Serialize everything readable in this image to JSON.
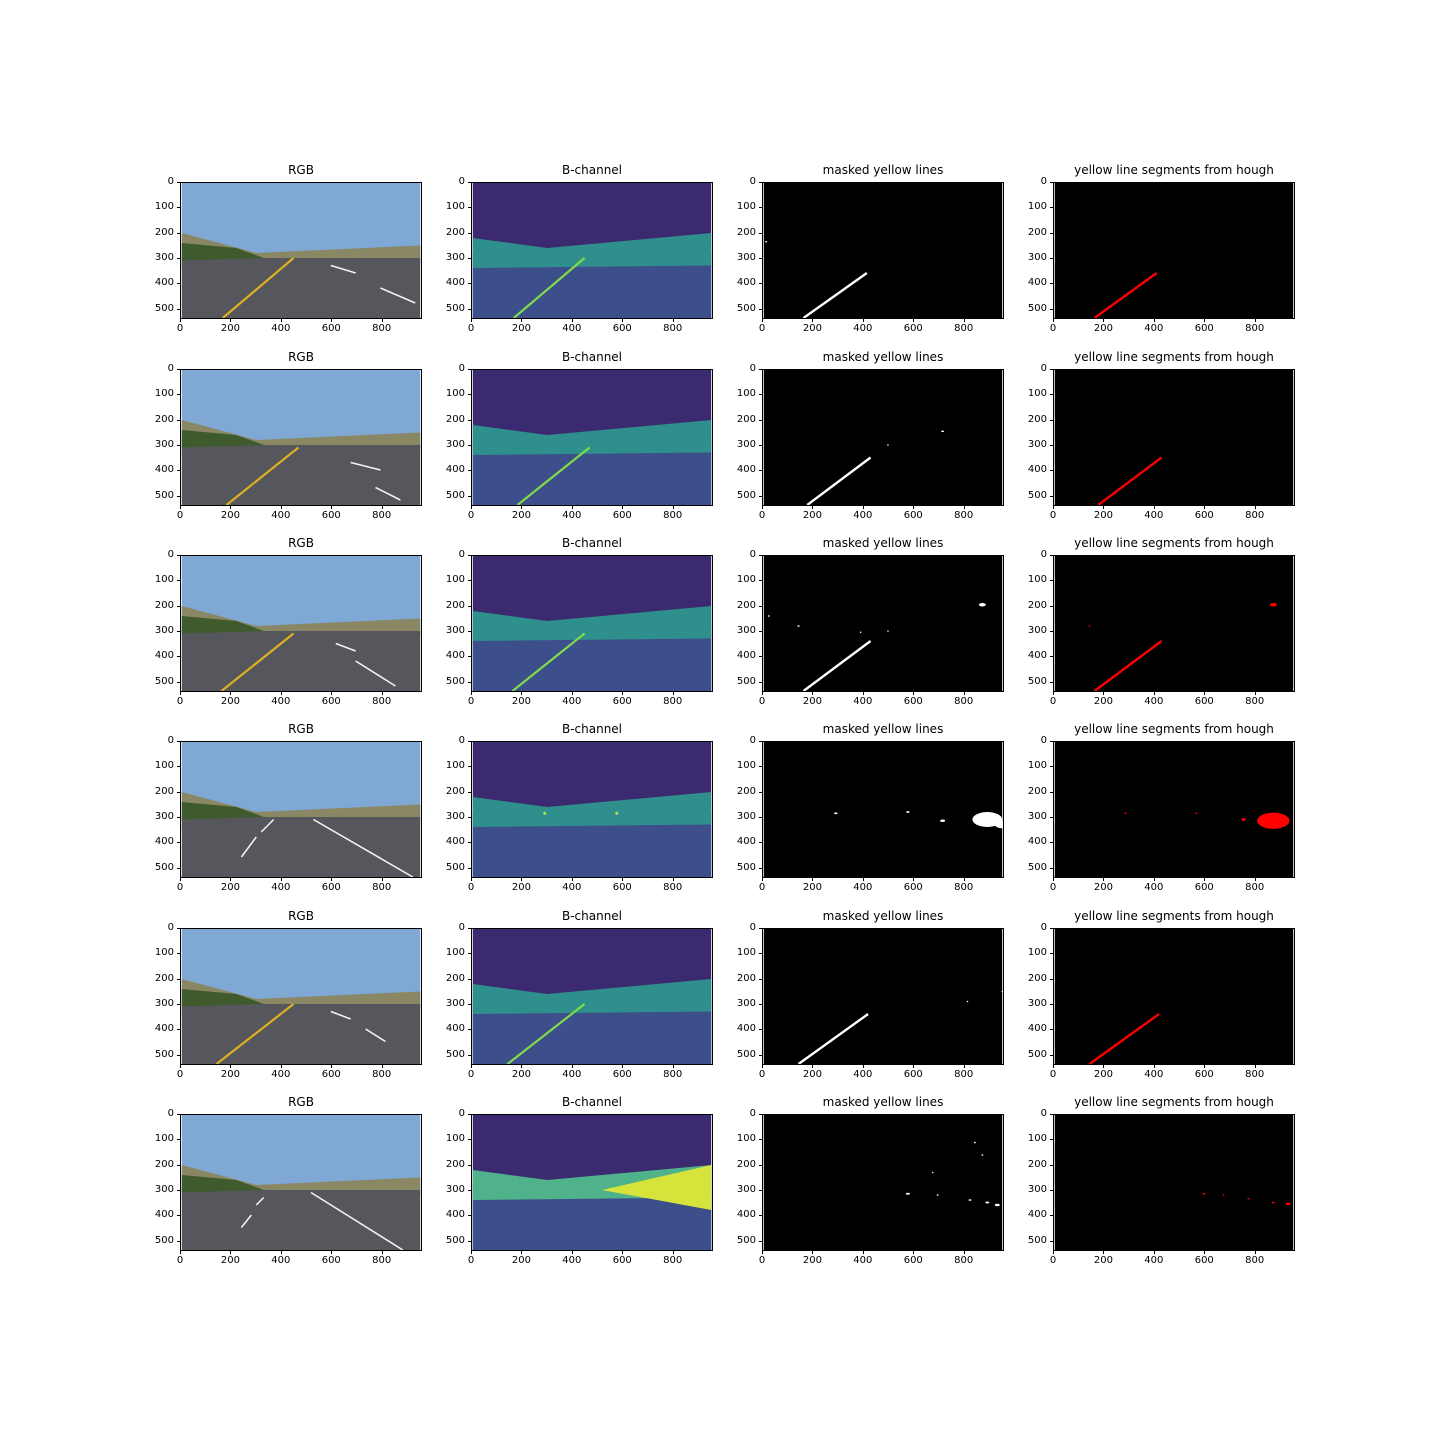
{
  "figure": {
    "panel_titles": [
      "RGB",
      "B-channel",
      "masked yellow lines",
      "yellow line segments from hough"
    ],
    "rows": 6,
    "y_ticks": [
      "0",
      "100",
      "200",
      "300",
      "400",
      "500"
    ],
    "x_ticks": [
      "0",
      "200",
      "400",
      "600",
      "800"
    ],
    "image_size": {
      "width": 960,
      "height": 540
    }
  },
  "panels": [
    {
      "kind": "rgb",
      "yellow_line": [
        [
          165,
          540
        ],
        [
          450,
          300
        ]
      ],
      "white_dashes": [
        [
          [
            600,
            330
          ],
          [
            700,
            360
          ]
        ],
        [
          [
            800,
            420
          ],
          [
            940,
            480
          ]
        ]
      ]
    },
    {
      "kind": "bchannel",
      "line": [
        [
          165,
          540
        ],
        [
          450,
          300
        ]
      ],
      "spots": []
    },
    {
      "kind": "mask",
      "color": "#ffffff",
      "line": [
        [
          160,
          540
        ],
        [
          415,
          360
        ]
      ],
      "blobs": [
        [
          10,
          235,
          4
        ]
      ]
    },
    {
      "kind": "hough",
      "color": "#ff0000",
      "line": [
        [
          160,
          540
        ],
        [
          410,
          360
        ]
      ],
      "blobs": []
    },
    {
      "kind": "rgb",
      "yellow_line": [
        [
          180,
          540
        ],
        [
          470,
          310
        ]
      ],
      "white_dashes": [
        [
          [
            680,
            370
          ],
          [
            800,
            400
          ]
        ],
        [
          [
            780,
            470
          ],
          [
            880,
            520
          ]
        ]
      ]
    },
    {
      "kind": "bchannel",
      "line": [
        [
          180,
          540
        ],
        [
          470,
          310
        ]
      ],
      "spots": []
    },
    {
      "kind": "mask",
      "color": "#ffffff",
      "line": [
        [
          175,
          540
        ],
        [
          430,
          350
        ]
      ],
      "blobs": [
        [
          720,
          245,
          6
        ],
        [
          500,
          300,
          2
        ]
      ]
    },
    {
      "kind": "hough",
      "color": "#ff0000",
      "line": [
        [
          175,
          540
        ],
        [
          430,
          350
        ]
      ],
      "blobs": []
    },
    {
      "kind": "rgb",
      "yellow_line": [
        [
          160,
          540
        ],
        [
          450,
          310
        ]
      ],
      "white_dashes": [
        [
          [
            700,
            420
          ],
          [
            860,
            520
          ]
        ],
        [
          [
            620,
            350
          ],
          [
            700,
            380
          ]
        ]
      ]
    },
    {
      "kind": "bchannel",
      "line": [
        [
          160,
          540
        ],
        [
          450,
          310
        ]
      ],
      "spots": []
    },
    {
      "kind": "mask",
      "color": "#ffffff",
      "line": [
        [
          160,
          540
        ],
        [
          430,
          340
        ]
      ],
      "blobs": [
        [
          880,
          195,
          14
        ],
        [
          140,
          280,
          5
        ],
        [
          20,
          240,
          4
        ],
        [
          500,
          300,
          3
        ],
        [
          390,
          305,
          2
        ]
      ]
    },
    {
      "kind": "hough",
      "color": "#ff0000",
      "line": [
        [
          160,
          540
        ],
        [
          430,
          340
        ]
      ],
      "blobs": [
        [
          880,
          195,
          14
        ],
        [
          140,
          280,
          3
        ]
      ]
    },
    {
      "kind": "rgb",
      "yellow_line": null,
      "white_dashes": [
        [
          [
            530,
            310
          ],
          [
            930,
            540
          ]
        ],
        [
          [
            370,
            310
          ],
          [
            320,
            360
          ]
        ],
        [
          [
            300,
            380
          ],
          [
            240,
            460
          ]
        ]
      ]
    },
    {
      "kind": "bchannel",
      "line": null,
      "spots": [
        [
          290,
          285,
          6
        ],
        [
          580,
          285,
          6
        ]
      ]
    },
    {
      "kind": "mask",
      "color": "#ffffff",
      "line": null,
      "blobs": [
        [
          290,
          285,
          7
        ],
        [
          580,
          280,
          7
        ],
        [
          900,
          310,
          60
        ],
        [
          720,
          315,
          10
        ],
        [
          960,
          330,
          30
        ]
      ]
    },
    {
      "kind": "hough",
      "color": "#ff0000",
      "line": null,
      "blobs": [
        [
          285,
          285,
          5
        ],
        [
          570,
          285,
          5
        ],
        [
          880,
          315,
          65
        ],
        [
          760,
          310,
          10
        ]
      ]
    },
    {
      "kind": "rgb",
      "yellow_line": [
        [
          140,
          540
        ],
        [
          450,
          300
        ]
      ],
      "white_dashes": [
        [
          [
            740,
            400
          ],
          [
            820,
            450
          ]
        ],
        [
          [
            600,
            330
          ],
          [
            680,
            360
          ]
        ]
      ]
    },
    {
      "kind": "bchannel",
      "line": [
        [
          140,
          540
        ],
        [
          450,
          300
        ]
      ],
      "spots": []
    },
    {
      "kind": "mask",
      "color": "#ffffff",
      "line": [
        [
          140,
          540
        ],
        [
          420,
          340
        ]
      ],
      "blobs": [
        [
          960,
          250,
          3
        ],
        [
          820,
          290,
          2
        ]
      ]
    },
    {
      "kind": "hough",
      "color": "#ff0000",
      "line": [
        [
          140,
          540
        ],
        [
          420,
          340
        ]
      ],
      "blobs": []
    },
    {
      "kind": "rgb",
      "yellow_line": null,
      "white_dashes": [
        [
          [
            520,
            310
          ],
          [
            890,
            540
          ]
        ],
        [
          [
            330,
            330
          ],
          [
            300,
            360
          ]
        ],
        [
          [
            280,
            400
          ],
          [
            240,
            450
          ]
        ]
      ]
    },
    {
      "kind": "bchannel",
      "line": null,
      "spots": []
    },
    {
      "kind": "mask",
      "color": "#ffffff",
      "line": null,
      "blobs": [
        [
          580,
          315,
          8
        ],
        [
          700,
          320,
          4
        ],
        [
          830,
          340,
          6
        ],
        [
          900,
          350,
          8
        ],
        [
          940,
          360,
          10
        ],
        [
          850,
          110,
          4
        ],
        [
          880,
          160,
          4
        ],
        [
          680,
          230,
          3
        ]
      ]
    },
    {
      "kind": "hough",
      "color": "#ff0000",
      "line": null,
      "blobs": [
        [
          600,
          315,
          6
        ],
        [
          680,
          320,
          3
        ],
        [
          780,
          335,
          5
        ],
        [
          880,
          350,
          6
        ],
        [
          940,
          355,
          10
        ]
      ]
    }
  ]
}
